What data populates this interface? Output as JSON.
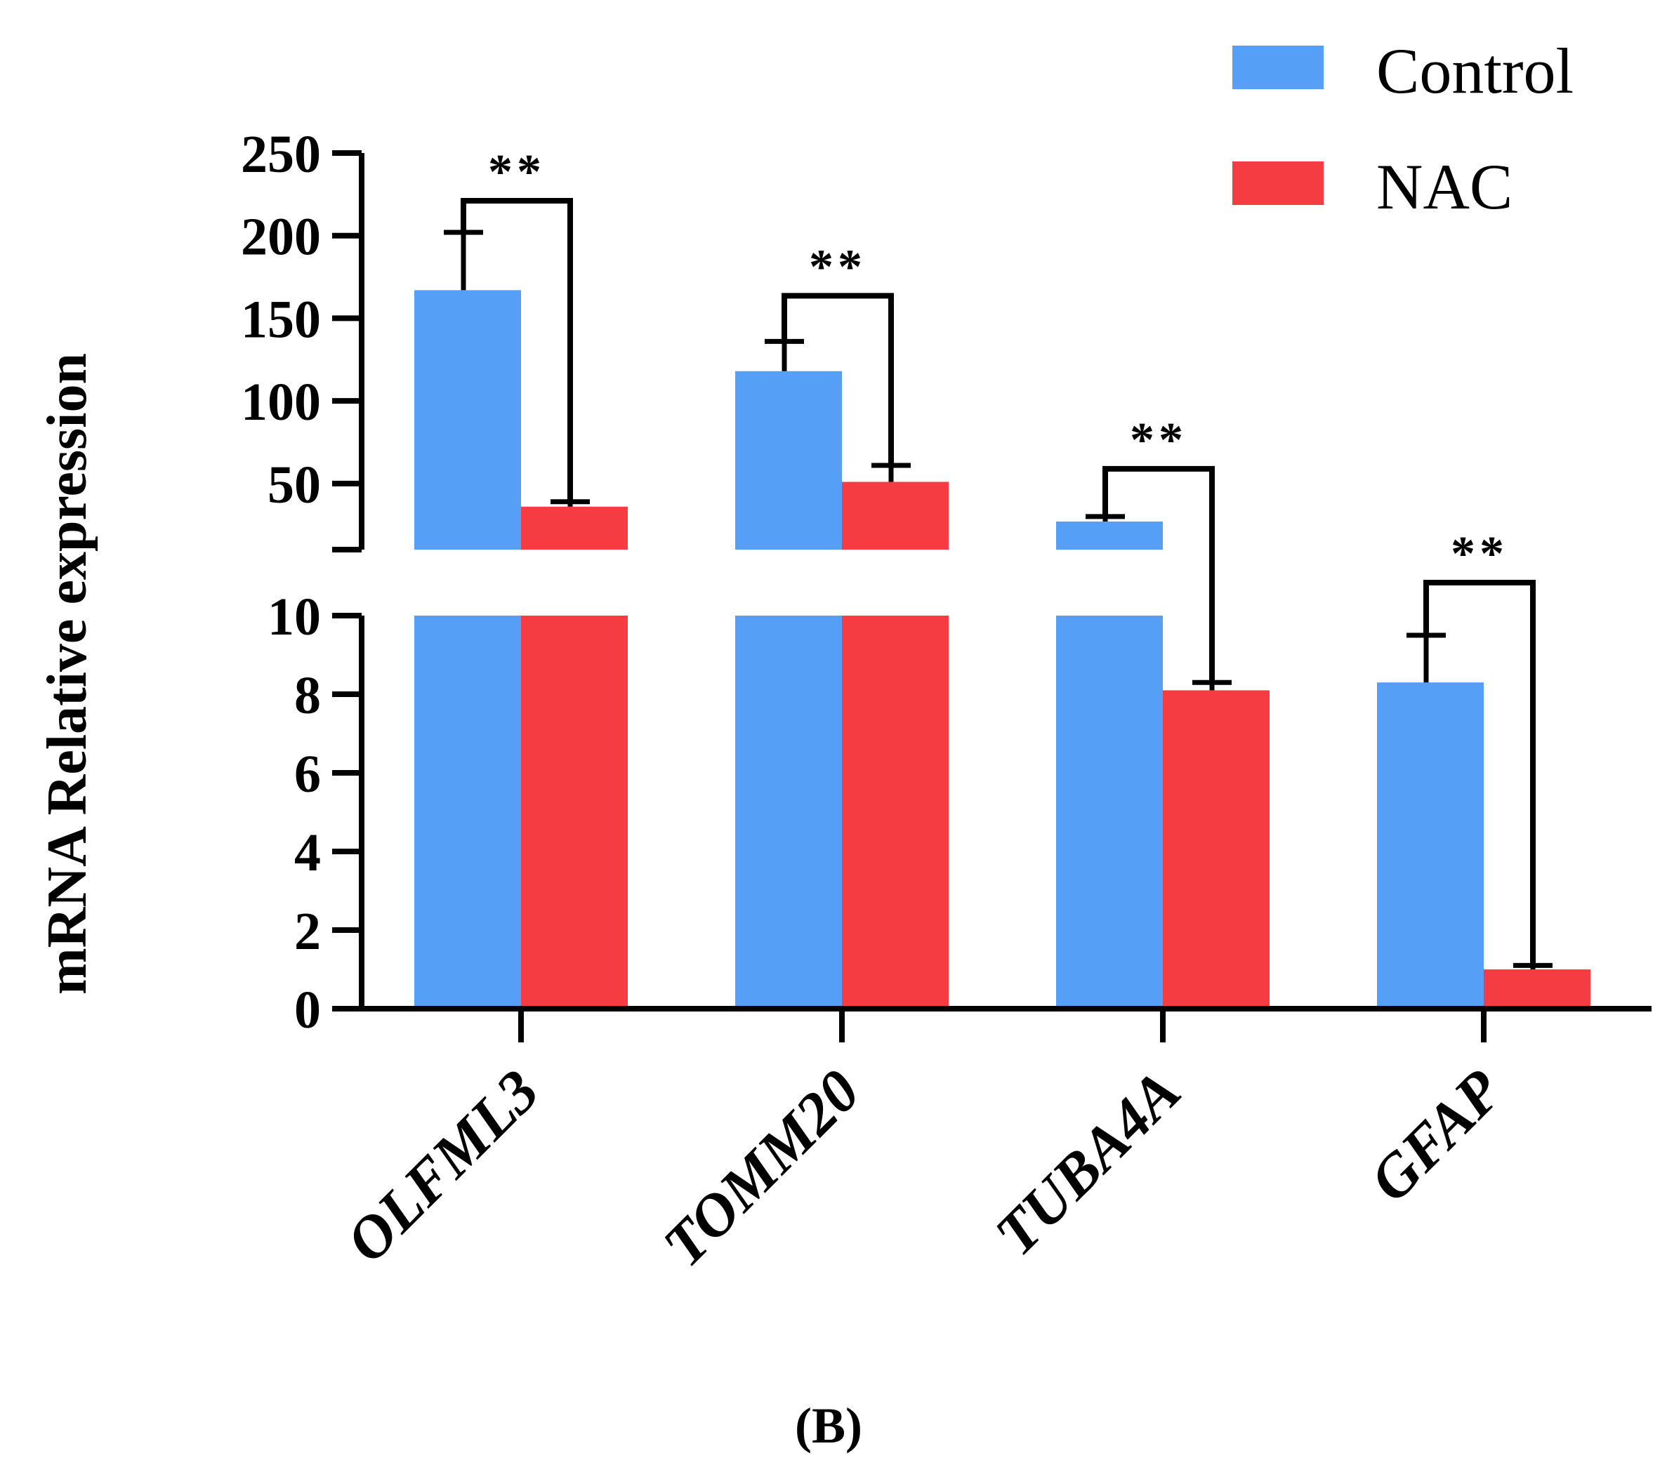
{
  "chart_data": {
    "type": "bar",
    "title": "",
    "xlabel": "",
    "ylabel": "mRNA Relative expression",
    "categories": [
      "OLFML3",
      "TOMM20",
      "TUBA4A",
      "GFAP"
    ],
    "series": [
      {
        "name": "Control",
        "color": "#559ff7",
        "values": [
          167,
          118,
          27,
          8.3
        ],
        "errors": [
          35,
          18,
          3,
          1.2
        ]
      },
      {
        "name": "NAC",
        "color": "#f53c42",
        "values": [
          36,
          51,
          8.1,
          1.0
        ],
        "errors": [
          3,
          10,
          0.2,
          0.1
        ]
      }
    ],
    "axis_break": {
      "lower_range": [
        0,
        10
      ],
      "upper_range": [
        10,
        250
      ],
      "lower_ticks": [
        "0",
        "2",
        "4",
        "6",
        "8",
        "10"
      ],
      "upper_ticks": [
        "50",
        "100",
        "150",
        "200",
        "250"
      ]
    },
    "significance": [
      "**",
      "**",
      "**",
      "**"
    ],
    "legend_position": "top-right",
    "panel_label": "(B)"
  }
}
